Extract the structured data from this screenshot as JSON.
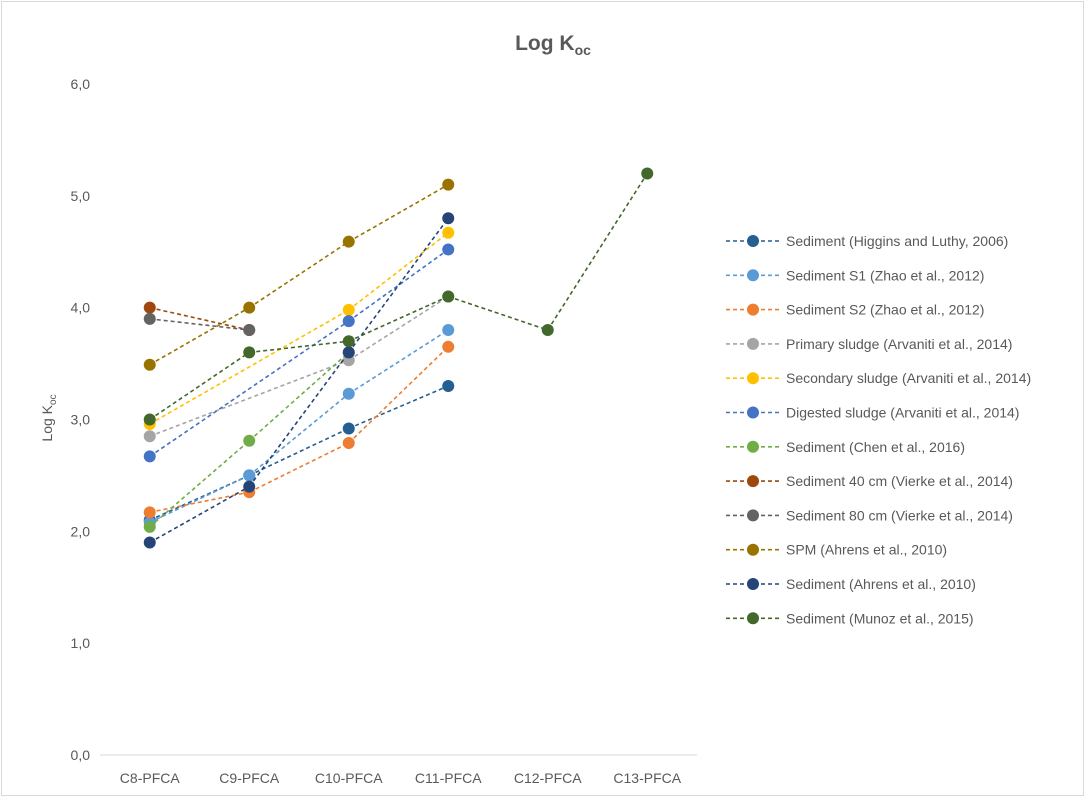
{
  "chart_data": {
    "type": "line",
    "title": "Log K",
    "title_subscript": "oc",
    "ylabel": "Log K",
    "ylabel_subscript": "oc",
    "xlabel": "",
    "categories": [
      "C8-PFCA",
      "C9-PFCA",
      "C10-PFCA",
      "C11-PFCA",
      "C12-PFCA",
      "C13-PFCA"
    ],
    "ylim": [
      0,
      6
    ],
    "yticks": [
      "0,0",
      "1,0",
      "2,0",
      "3,0",
      "4,0",
      "5,0",
      "6,0"
    ],
    "grid": false,
    "legend_position": "right",
    "series": [
      {
        "name": "Sediment (Higgins and Luthy, 2006)",
        "color": "#255e91",
        "values": [
          2.1,
          2.5,
          2.92,
          3.3,
          null,
          null
        ]
      },
      {
        "name": "Sediment S1 (Zhao et al., 2012)",
        "color": "#5b9bd5",
        "values": [
          2.08,
          2.5,
          3.23,
          3.8,
          null,
          null
        ]
      },
      {
        "name": "Sediment S2 (Zhao et al., 2012)",
        "color": "#ed7d31",
        "values": [
          2.17,
          2.35,
          2.79,
          3.65,
          null,
          null
        ]
      },
      {
        "name": "Primary sludge (Arvaniti et al., 2014)",
        "color": "#a5a5a5",
        "values": [
          2.85,
          null,
          3.53,
          4.1,
          null,
          null
        ]
      },
      {
        "name": "Secondary sludge (Arvaniti et al., 2014)",
        "color": "#ffc000",
        "values": [
          2.96,
          null,
          3.98,
          4.67,
          null,
          null
        ]
      },
      {
        "name": "Digested sludge (Arvaniti et al., 2014)",
        "color": "#4472c4",
        "values": [
          2.67,
          null,
          3.88,
          4.52,
          null,
          null
        ]
      },
      {
        "name": "Sediment (Chen et al., 2016)",
        "color": "#70ad47",
        "values": [
          2.04,
          2.81,
          3.6,
          null,
          null,
          null
        ]
      },
      {
        "name": "Sediment 40 cm (Vierke et al., 2014)",
        "color": "#9e480e",
        "values": [
          4.0,
          3.8,
          null,
          null,
          null,
          null
        ]
      },
      {
        "name": "Sediment 80 cm (Vierke et al., 2014)",
        "color": "#636363",
        "values": [
          3.9,
          3.8,
          null,
          null,
          null,
          null
        ]
      },
      {
        "name": "SPM (Ahrens et al., 2010)",
        "color": "#997300",
        "values": [
          3.49,
          4.0,
          4.59,
          5.1,
          null,
          null
        ]
      },
      {
        "name": "Sediment (Ahrens et al., 2010)",
        "color": "#264478",
        "values": [
          1.9,
          2.4,
          3.6,
          4.8,
          null,
          null
        ]
      },
      {
        "name": "Sediment (Munoz et al., 2015)",
        "color": "#43682b",
        "values": [
          3.0,
          3.6,
          3.7,
          4.1,
          3.8,
          5.2
        ]
      }
    ]
  }
}
